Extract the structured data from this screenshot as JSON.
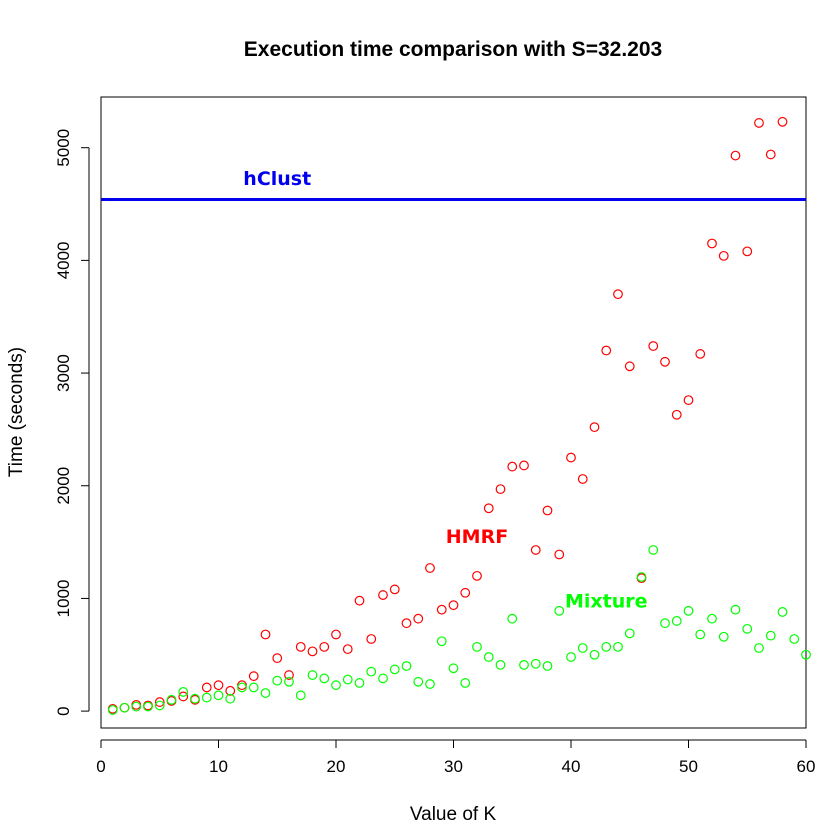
{
  "chart_data": {
    "type": "scatter",
    "title": "Execution time comparison with S=32.203",
    "xlabel": "Value of K",
    "ylabel": "Time (seconds)",
    "xlim": [
      0,
      60
    ],
    "ylim": [
      -150,
      5450
    ],
    "xticks": [
      0,
      10,
      20,
      30,
      40,
      50,
      60
    ],
    "yticks": [
      0,
      1000,
      2000,
      3000,
      4000,
      5000
    ],
    "grid": false,
    "legend": "none",
    "hline": {
      "label": "hClust",
      "y": 4540,
      "color": "#0000ee"
    },
    "annotations": [
      {
        "text": "hClust",
        "x": 15,
        "y": 4670,
        "color": "#0000ee"
      },
      {
        "text": "HMRF",
        "x": 32,
        "y": 1490,
        "color": "#ff0000"
      },
      {
        "text": "Mixture",
        "x": 43,
        "y": 920,
        "color": "#00ff00"
      }
    ],
    "series": [
      {
        "label": "HMRF",
        "color": "#ff0000",
        "x": [
          1,
          2,
          3,
          4,
          5,
          6,
          7,
          8,
          9,
          10,
          11,
          12,
          13,
          14,
          15,
          16,
          17,
          18,
          19,
          20,
          21,
          22,
          23,
          24,
          25,
          26,
          27,
          28,
          29,
          30,
          31,
          32,
          33,
          34,
          35,
          36,
          37,
          38,
          39,
          40,
          41,
          42,
          43,
          44,
          45,
          46,
          47,
          48,
          49,
          50,
          51,
          52,
          53,
          54,
          55,
          56,
          57,
          58
        ],
        "values": [
          20,
          30,
          55,
          50,
          80,
          90,
          130,
          100,
          210,
          230,
          180,
          230,
          310,
          680,
          470,
          320,
          570,
          530,
          570,
          680,
          550,
          980,
          640,
          1030,
          1080,
          780,
          820,
          1270,
          900,
          940,
          1050,
          1200,
          1800,
          1970,
          2170,
          2180,
          1430,
          1780,
          1390,
          2250,
          2060,
          2520,
          3200,
          3700,
          3060,
          1180,
          3240,
          3100,
          2630,
          2760,
          3170,
          4150,
          4040,
          4930,
          4080,
          5220,
          4940,
          5230
        ]
      },
      {
        "label": "Mixture",
        "color": "#00ff00",
        "x": [
          1,
          2,
          3,
          4,
          5,
          6,
          7,
          8,
          9,
          10,
          11,
          12,
          13,
          14,
          15,
          16,
          17,
          18,
          19,
          20,
          21,
          22,
          23,
          24,
          25,
          26,
          27,
          28,
          29,
          30,
          31,
          32,
          33,
          34,
          35,
          36,
          37,
          38,
          39,
          40,
          41,
          42,
          43,
          44,
          45,
          46,
          47,
          48,
          49,
          50,
          51,
          52,
          53,
          54,
          55,
          56,
          57,
          58,
          59,
          60
        ],
        "values": [
          10,
          30,
          40,
          40,
          50,
          100,
          170,
          110,
          120,
          140,
          110,
          210,
          210,
          160,
          270,
          260,
          140,
          320,
          290,
          230,
          280,
          250,
          350,
          290,
          370,
          400,
          260,
          240,
          620,
          380,
          250,
          570,
          480,
          410,
          820,
          410,
          420,
          400,
          890,
          480,
          560,
          500,
          570,
          570,
          690,
          1190,
          1430,
          780,
          800,
          890,
          680,
          820,
          660,
          900,
          730,
          560,
          670,
          880,
          640,
          500
        ]
      }
    ]
  }
}
